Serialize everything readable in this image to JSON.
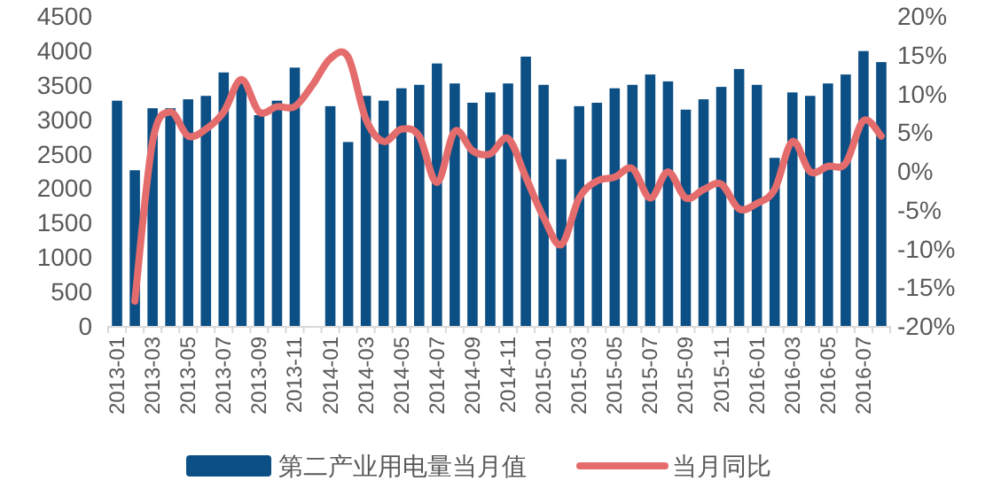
{
  "chart_data": {
    "type": "bar",
    "categories": [
      "2013-01",
      null,
      "2013-03",
      null,
      "2013-05",
      null,
      "2013-07",
      null,
      "2013-09",
      null,
      "2013-11",
      null,
      "2014-01",
      null,
      "2014-03",
      null,
      "2014-05",
      null,
      "2014-07",
      null,
      "2014-09",
      null,
      "2014-11",
      null,
      "2015-01",
      null,
      "2015-03",
      null,
      "2015-05",
      null,
      "2015-07",
      null,
      "2015-09",
      null,
      "2015-11",
      null,
      "2016-01",
      null,
      "2016-03",
      null,
      "2016-05",
      null,
      "2016-07",
      null
    ],
    "series": [
      {
        "name": "第二产业用电量当月值",
        "color": "#0b4f85",
        "values": [
          3270,
          2260,
          3160,
          3160,
          3290,
          3340,
          3680,
          3520,
          3060,
          3270,
          3750,
          null,
          3190,
          2670,
          3340,
          3270,
          3450,
          3500,
          3810,
          3520,
          3240,
          3390,
          3520,
          3910,
          3500,
          2420,
          3190,
          3240,
          3450,
          3500,
          3650,
          3550,
          3140,
          3290,
          3470,
          3730,
          3500,
          2440,
          3390,
          3340,
          3520,
          3650,
          3990,
          3830
        ]
      },
      {
        "name": "当月同比",
        "type": "line",
        "axis": "y2",
        "color": "#e46c6c",
        "values": [
          null,
          -16.8,
          3.8,
          7.6,
          4.5,
          5.4,
          7.6,
          11.8,
          7.6,
          8.3,
          8.3,
          11.1,
          14.5,
          14.7,
          6.7,
          3.8,
          5.4,
          4.5,
          -1.5,
          5.1,
          2.6,
          2.2,
          4.2,
          -0.8,
          -6,
          -9.5,
          -3.5,
          -1.3,
          -0.8,
          0.3,
          -3.5,
          -0.1,
          -3.5,
          -2.4,
          -1.7,
          -4.9,
          -4.2,
          -2.4,
          3.8,
          -0.1,
          0.6,
          1.0,
          6.5,
          4.5
        ]
      }
    ],
    "ylim": [
      0,
      4500
    ],
    "yticks": [
      0,
      500,
      1000,
      1500,
      2000,
      2500,
      3000,
      3500,
      4000,
      4500
    ],
    "y2lim": [
      -20,
      20
    ],
    "y2ticks": [
      {
        "value": -20,
        "label": "-20%"
      },
      {
        "value": -15,
        "label": "-15%"
      },
      {
        "value": -10,
        "label": "-10%"
      },
      {
        "value": -5,
        "label": "-5%"
      },
      {
        "value": 0,
        "label": "0%"
      },
      {
        "value": 5,
        "label": "5%"
      },
      {
        "value": 10,
        "label": "10%"
      },
      {
        "value": 15,
        "label": "15%"
      },
      {
        "value": 20,
        "label": "20%"
      }
    ],
    "legend": "bottom",
    "grid": false
  }
}
